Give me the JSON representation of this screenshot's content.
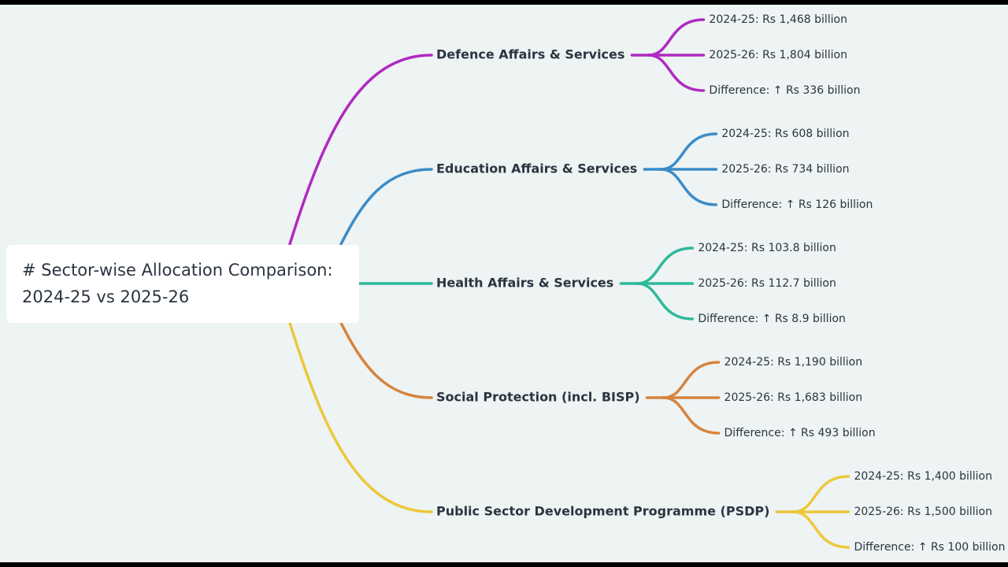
{
  "root": {
    "lines": [
      "# Sector-wise Allocation Comparison:",
      "2024-25 vs 2025-26"
    ]
  },
  "branches": [
    {
      "label": "Defence Affairs & Services",
      "color": "#b02ac0",
      "children": [
        "2024-25: Rs 1,468 billion",
        "2025-26: Rs 1,804 billion",
        "Difference: ↑ Rs 336 billion"
      ]
    },
    {
      "label": "Education Affairs & Services",
      "color": "#3a8cc8",
      "children": [
        "2024-25: Rs 608 billion",
        "2025-26: Rs 734 billion",
        "Difference: ↑ Rs 126 billion"
      ]
    },
    {
      "label": "Health Affairs & Services",
      "color": "#2fb89a",
      "children": [
        "2024-25: Rs 103.8 billion",
        "2025-26: Rs 112.7 billion",
        "Difference: ↑ Rs 8.9 billion"
      ]
    },
    {
      "label": "Social Protection (incl. BISP)",
      "color": "#d6843e",
      "children": [
        "2024-25: Rs 1,190 billion",
        "2025-26: Rs 1,683 billion",
        "Difference: ↑ Rs 493 billion"
      ]
    },
    {
      "label": "Public Sector Development Programme (PSDP)",
      "color": "#ecc83a",
      "children": [
        "2024-25: Rs 1,400 billion",
        "2025-26: Rs 1,500 billion",
        "Difference: ↑ Rs 100 billion"
      ]
    }
  ]
}
